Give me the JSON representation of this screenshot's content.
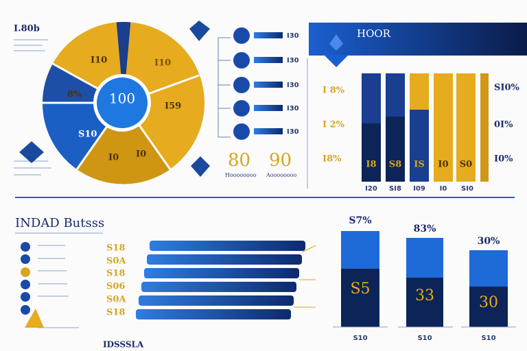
{
  "header": {
    "corner_label": "I.80b",
    "panel_title": "HOOR",
    "section_title": "INDAD Butsss",
    "footer": "IDSSSLA"
  },
  "pie": {
    "center": "100",
    "labels": [
      "I10",
      "I10",
      "8%",
      "I59",
      "S10",
      "I0",
      "I0"
    ]
  },
  "middle": {
    "numbers": [
      "80",
      "90"
    ],
    "captions": [
      "Hoooooooo",
      "Aoooooooo"
    ],
    "pointer_labels": [
      "I30",
      "I30",
      "I30",
      "I30",
      "I30"
    ]
  },
  "bar_panel": {
    "left_labels": [
      "I 8%",
      "I 2%",
      "I8%"
    ],
    "right_labels": [
      "SI0%",
      "0I%",
      "I0%"
    ],
    "bar_labels": [
      "I8",
      "S8",
      "IS",
      "I0",
      "S0"
    ],
    "bottom_labels": [
      "I20",
      "SI8",
      "I09",
      "I0",
      "SI0"
    ]
  },
  "row_list": {
    "labels": [
      "S18",
      "S0A",
      "S18",
      "S06",
      "S0A",
      "S18"
    ]
  },
  "column_panel": {
    "top_labels": [
      "S7%",
      "83%",
      "30%"
    ],
    "values": [
      "S5",
      "33",
      "30"
    ],
    "bottom_labels": [
      "S10",
      "S10",
      "S10"
    ]
  }
}
